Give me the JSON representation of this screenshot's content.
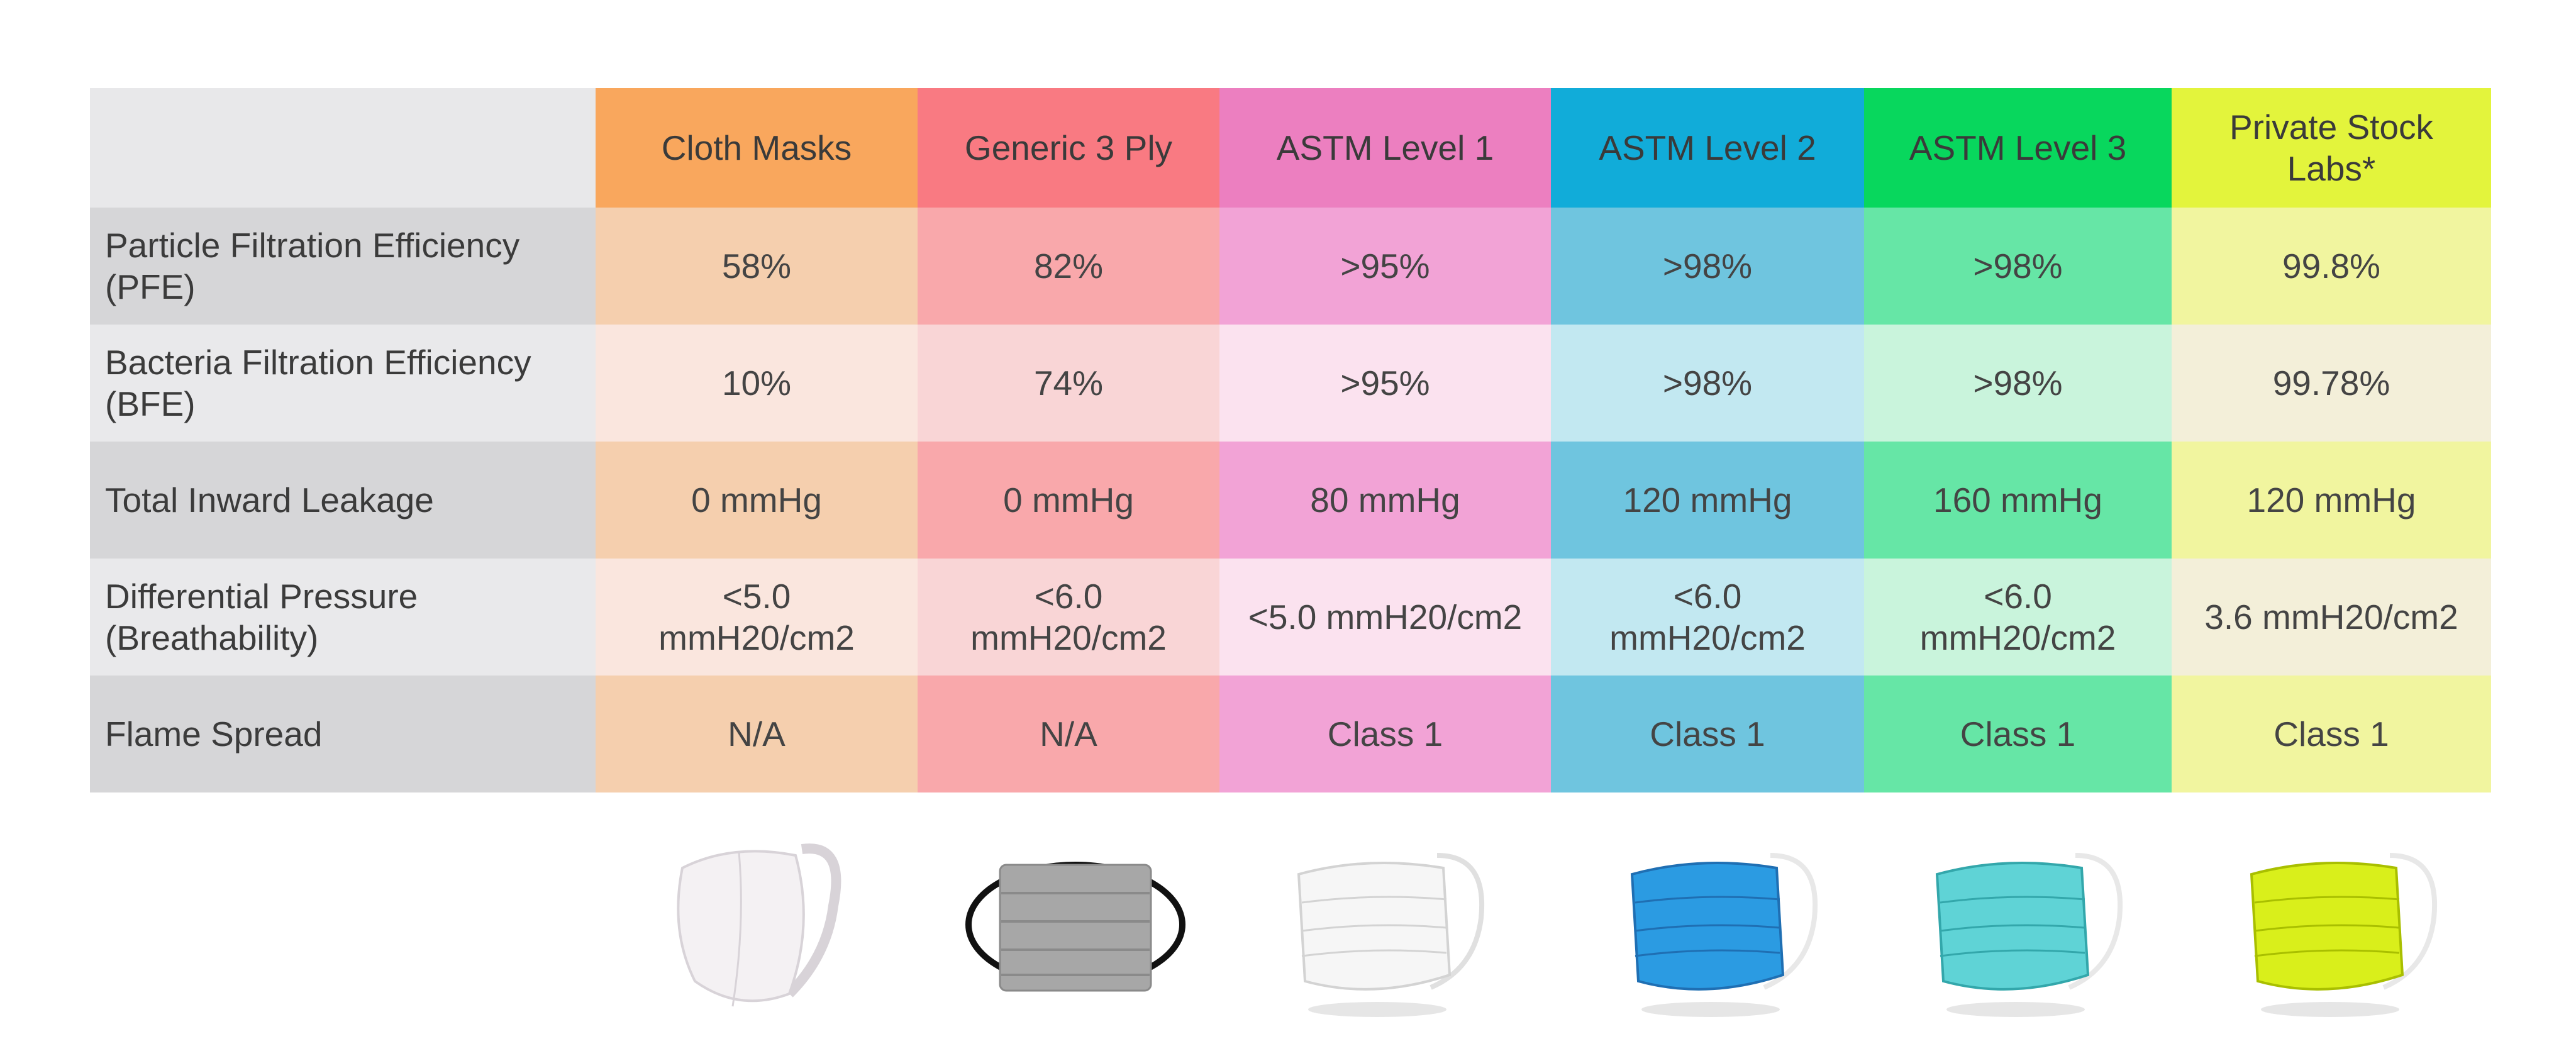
{
  "chart_data": {
    "type": "table",
    "columns": [
      {
        "label": "Cloth Masks",
        "color": "#f9a75d",
        "cell_color": "#f5cfae",
        "alt_color": "#fae6de"
      },
      {
        "label": "Generic 3 Ply",
        "color": "#f97a82",
        "cell_color": "#f9a8ab",
        "alt_color": "#f9d5d6"
      },
      {
        "label": "ASTM Level 1",
        "color": "#ec7fc0",
        "cell_color": "#f2a3d6",
        "alt_color": "#fbe2ef"
      },
      {
        "label": "ASTM Level 2",
        "color": "#11acd9",
        "cell_color": "#6fc5df",
        "alt_color": "#c2e8f1"
      },
      {
        "label": "ASTM Level 3",
        "color": "#08d75d",
        "cell_color": "#66e6a6",
        "alt_color": "#c9f4dc"
      },
      {
        "label": "Private Stock Labs*",
        "color": "#e3f43c",
        "cell_color": "#f1f59f",
        "alt_color": "#f3efd9"
      }
    ],
    "rows": [
      {
        "label": "Particle Filtration Efficiency (PFE)",
        "values": [
          "58%",
          "82%",
          ">95%",
          ">98%",
          ">98%",
          "99.8%"
        ]
      },
      {
        "label": "Bacteria Filtration Efficiency (BFE)",
        "values": [
          "10%",
          "74%",
          ">95%",
          ">98%",
          ">98%",
          "99.78%"
        ]
      },
      {
        "label": "Total Inward Leakage",
        "values": [
          "0 mmHg",
          "0 mmHg",
          "80 mmHg",
          "120 mmHg",
          "160 mmHg",
          "120 mmHg"
        ]
      },
      {
        "label": "Differential Pressure (Breathability)",
        "values": [
          "<5.0 mmH20/cm2",
          "<6.0 mmH20/cm2",
          "<5.0 mmH20/cm2",
          "<6.0 mmH20/cm2",
          "<6.0 mmH20/cm2",
          "3.6 mmH20/cm2"
        ]
      },
      {
        "label": "Flame Spread",
        "values": [
          "N/A",
          "N/A",
          "Class 1",
          "Class 1",
          "Class 1",
          "Class 1"
        ]
      }
    ],
    "label_colors": {
      "dark": "#d6d6d8",
      "light": "#e9e9eb"
    }
  },
  "mask_images": [
    {
      "name": "cloth-mask-icon",
      "color": "#f4f1f3",
      "outline": "#d8d3d8"
    },
    {
      "name": "generic-3-ply-mask-icon",
      "color": "#a7a7a7",
      "outline": "#111111"
    },
    {
      "name": "astm-level-1-mask-icon",
      "color": "#f6f6f6",
      "outline": "#d3d3d3"
    },
    {
      "name": "astm-level-2-mask-icon",
      "color": "#2b9be2",
      "outline": "#1f6fb3"
    },
    {
      "name": "astm-level-3-mask-icon",
      "color": "#5fd3d6",
      "outline": "#33a7ab"
    },
    {
      "name": "private-stock-labs-mask-icon",
      "color": "#d9ef1b",
      "outline": "#a9bf00"
    }
  ]
}
